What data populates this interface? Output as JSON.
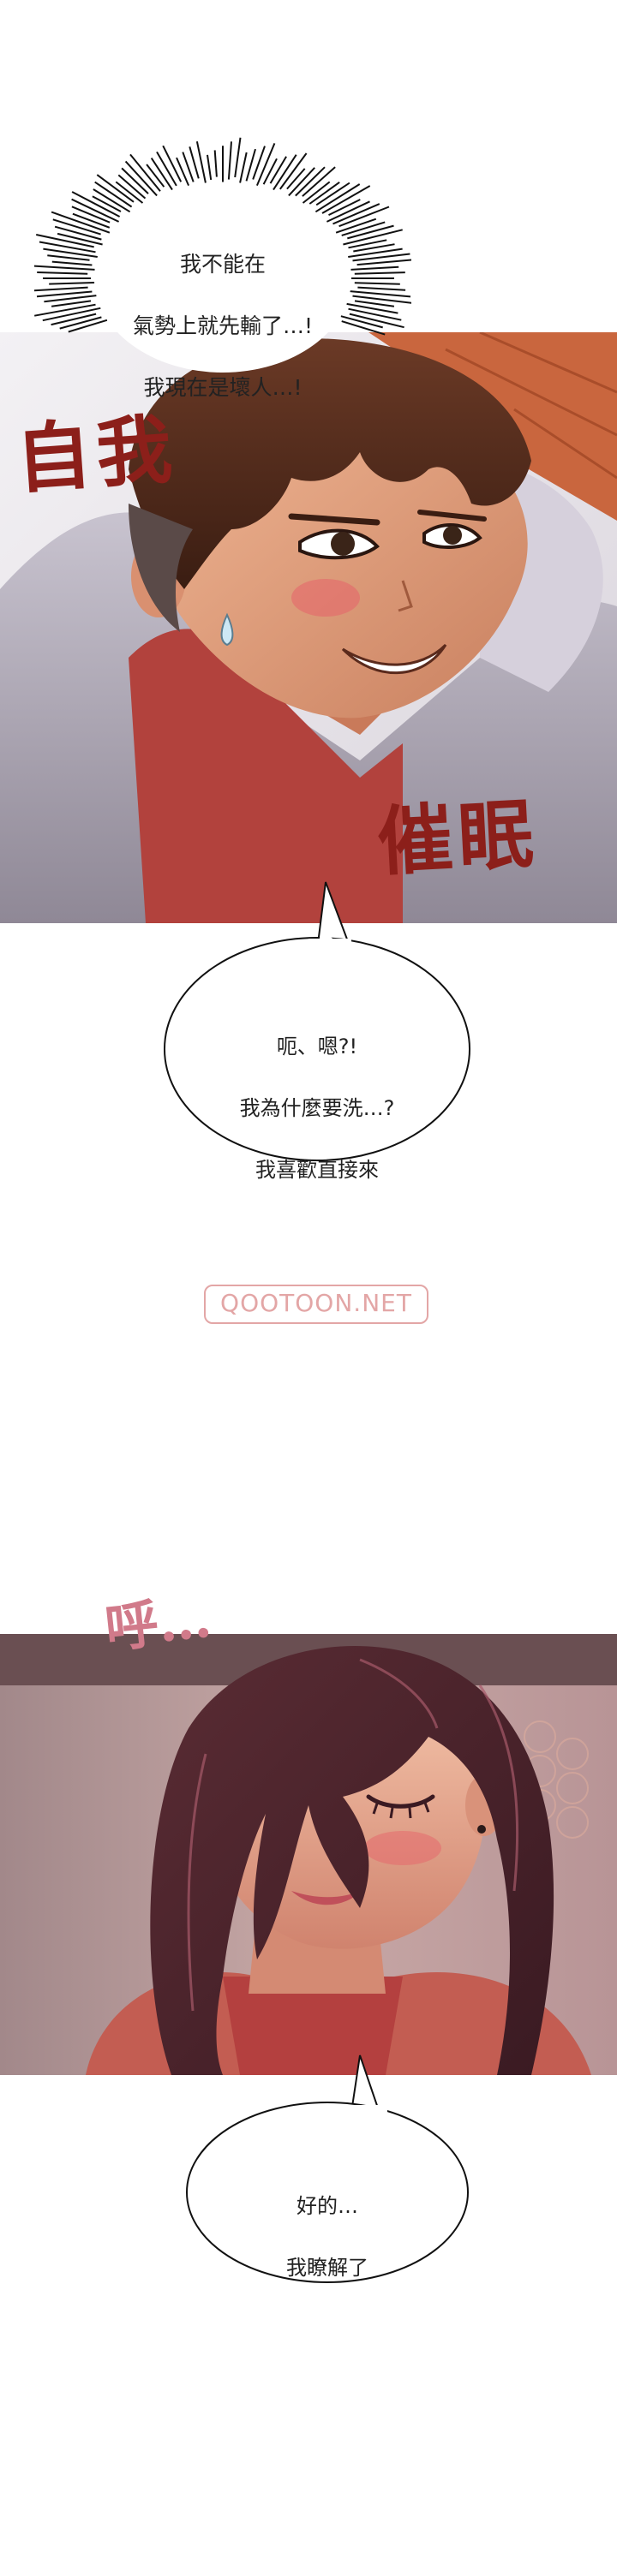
{
  "bubbles": {
    "top": [
      "我不能在",
      "氣勢上就先輸了…!",
      "我現在是壞人…!"
    ],
    "middle": [
      "呃、嗯?!",
      "我為什麼要洗…?",
      "我喜歡直接來"
    ],
    "bottom": [
      "好的…",
      "我瞭解了"
    ]
  },
  "sfx": {
    "ego": "自我",
    "hypnosis": "催眠",
    "sigh": "呼…"
  },
  "watermark": "QOOTOON.NET",
  "colors": {
    "sfx_red": "#8c1f1a",
    "sigh_pink": "#d17a8a",
    "watermark": "#e3a6a6"
  }
}
